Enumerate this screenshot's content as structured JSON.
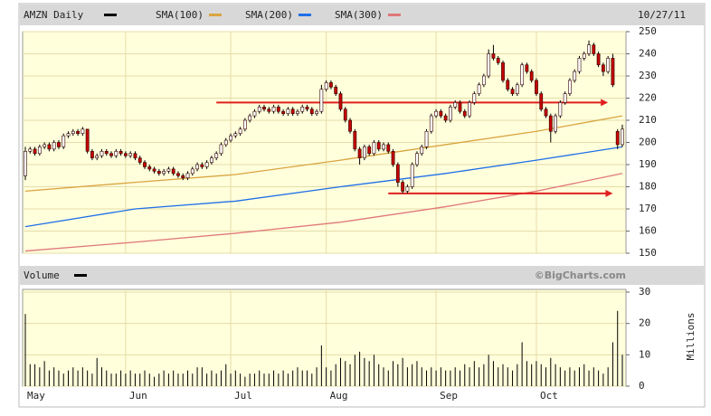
{
  "chart_data": [
    {
      "type": "candlestick",
      "title": "AMZN Daily",
      "color": "#000000",
      "date": "10/27/11",
      "watermark": "©BigCharts.com",
      "up_color": "#ffffff",
      "down_color": "#c40000",
      "ylim": [
        150,
        250
      ],
      "yticks": [
        150,
        160,
        170,
        180,
        190,
        200,
        210,
        220,
        230,
        240,
        250
      ],
      "grid": true,
      "ohlc": [
        [
          185,
          198,
          183,
          196
        ],
        [
          196,
          198,
          195,
          197
        ],
        [
          197,
          198,
          194,
          195
        ],
        [
          195,
          199,
          194,
          198
        ],
        [
          198,
          200,
          197,
          199
        ],
        [
          199,
          200,
          196,
          197
        ],
        [
          197,
          201,
          196,
          200
        ],
        [
          200,
          201,
          197,
          198
        ],
        [
          198,
          204,
          197,
          203
        ],
        [
          203,
          205,
          202,
          204
        ],
        [
          204,
          206,
          203,
          205
        ],
        [
          205,
          206,
          203,
          204
        ],
        [
          204,
          207,
          203,
          206
        ],
        [
          206,
          206,
          195,
          196
        ],
        [
          196,
          197,
          192,
          193
        ],
        [
          193,
          195,
          192,
          194
        ],
        [
          194,
          197,
          193,
          196
        ],
        [
          196,
          197,
          194,
          195
        ],
        [
          195,
          196,
          193,
          194
        ],
        [
          194,
          197,
          193,
          196
        ],
        [
          196,
          197,
          194,
          195
        ],
        [
          195,
          196,
          193,
          194
        ],
        [
          194,
          196,
          193,
          195
        ],
        [
          195,
          196,
          192,
          193
        ],
        [
          193,
          194,
          190,
          191
        ],
        [
          191,
          192,
          188,
          189
        ],
        [
          189,
          190,
          187,
          188
        ],
        [
          188,
          189,
          186,
          187
        ],
        [
          187,
          188,
          185,
          186
        ],
        [
          186,
          188,
          185,
          187
        ],
        [
          187,
          189,
          186,
          188
        ],
        [
          188,
          189,
          185,
          186
        ],
        [
          186,
          187,
          184,
          185
        ],
        [
          185,
          186,
          183,
          184
        ],
        [
          184,
          187,
          183,
          186
        ],
        [
          186,
          189,
          185,
          188
        ],
        [
          188,
          191,
          187,
          190
        ],
        [
          190,
          191,
          188,
          189
        ],
        [
          189,
          192,
          188,
          191
        ],
        [
          191,
          194,
          190,
          193
        ],
        [
          193,
          196,
          192,
          195
        ],
        [
          195,
          200,
          194,
          199
        ],
        [
          199,
          202,
          198,
          201
        ],
        [
          201,
          204,
          200,
          203
        ],
        [
          203,
          205,
          202,
          204
        ],
        [
          204,
          207,
          203,
          206
        ],
        [
          206,
          211,
          205,
          210
        ],
        [
          210,
          213,
          209,
          212
        ],
        [
          212,
          215,
          211,
          214
        ],
        [
          214,
          217,
          213,
          216
        ],
        [
          216,
          217,
          214,
          215
        ],
        [
          215,
          216,
          213,
          214
        ],
        [
          214,
          217,
          213,
          216
        ],
        [
          216,
          217,
          213,
          214
        ],
        [
          214,
          215,
          212,
          213
        ],
        [
          213,
          216,
          212,
          215
        ],
        [
          215,
          216,
          212,
          213
        ],
        [
          213,
          215,
          212,
          214
        ],
        [
          214,
          217,
          213,
          216
        ],
        [
          216,
          217,
          214,
          215
        ],
        [
          215,
          216,
          212,
          213
        ],
        [
          213,
          215,
          212,
          214
        ],
        [
          214,
          226,
          213,
          224
        ],
        [
          224,
          228,
          223,
          227
        ],
        [
          227,
          228,
          224,
          225
        ],
        [
          225,
          226,
          221,
          222
        ],
        [
          222,
          223,
          214,
          215
        ],
        [
          215,
          216,
          209,
          210
        ],
        [
          210,
          211,
          204,
          205
        ],
        [
          205,
          206,
          196,
          197
        ],
        [
          197,
          198,
          190,
          193
        ],
        [
          193,
          199,
          192,
          198
        ],
        [
          198,
          199,
          194,
          195
        ],
        [
          195,
          201,
          194,
          200
        ],
        [
          200,
          201,
          196,
          197
        ],
        [
          197,
          200,
          196,
          199
        ],
        [
          199,
          200,
          195,
          196
        ],
        [
          196,
          197,
          189,
          190
        ],
        [
          190,
          191,
          180,
          182
        ],
        [
          182,
          183,
          177,
          178
        ],
        [
          178,
          181,
          177,
          180
        ],
        [
          180,
          191,
          179,
          190
        ],
        [
          190,
          196,
          189,
          195
        ],
        [
          195,
          199,
          194,
          198
        ],
        [
          198,
          206,
          197,
          205
        ],
        [
          205,
          213,
          204,
          212
        ],
        [
          212,
          215,
          211,
          214
        ],
        [
          214,
          215,
          211,
          212
        ],
        [
          212,
          213,
          209,
          210
        ],
        [
          210,
          217,
          209,
          216
        ],
        [
          216,
          219,
          215,
          218
        ],
        [
          218,
          219,
          213,
          214
        ],
        [
          214,
          215,
          211,
          212
        ],
        [
          212,
          219,
          211,
          218
        ],
        [
          218,
          223,
          217,
          222
        ],
        [
          222,
          227,
          221,
          226
        ],
        [
          226,
          231,
          225,
          230
        ],
        [
          230,
          242,
          229,
          240
        ],
        [
          240,
          244,
          237,
          238
        ],
        [
          238,
          239,
          235,
          236
        ],
        [
          236,
          237,
          227,
          228
        ],
        [
          228,
          229,
          223,
          224
        ],
        [
          224,
          225,
          221,
          222
        ],
        [
          222,
          227,
          221,
          226
        ],
        [
          226,
          236,
          225,
          235
        ],
        [
          235,
          236,
          231,
          232
        ],
        [
          232,
          233,
          227,
          228
        ],
        [
          228,
          229,
          221,
          222
        ],
        [
          222,
          223,
          214,
          215
        ],
        [
          215,
          216,
          211,
          212
        ],
        [
          212,
          213,
          200,
          205
        ],
        [
          205,
          213,
          204,
          212
        ],
        [
          212,
          219,
          211,
          218
        ],
        [
          218,
          223,
          217,
          222
        ],
        [
          222,
          229,
          221,
          228
        ],
        [
          228,
          233,
          227,
          232
        ],
        [
          232,
          239,
          231,
          238
        ],
        [
          238,
          241,
          237,
          240
        ],
        [
          240,
          246,
          239,
          244
        ],
        [
          244,
          245,
          239,
          240
        ],
        [
          240,
          241,
          234,
          235
        ],
        [
          235,
          236,
          230,
          232
        ],
        [
          232,
          239,
          231,
          238
        ],
        [
          238,
          240,
          225,
          226
        ],
        [
          205,
          206,
          197,
          199
        ],
        [
          199,
          208,
          198,
          206
        ]
      ],
      "series": [
        {
          "name": "SMA(100)",
          "color": "#d9a441",
          "x": [
            0,
            23,
            44,
            66,
            88,
            107,
            125
          ],
          "values": [
            178,
            182,
            185.5,
            192,
            199,
            205,
            212
          ]
        },
        {
          "name": "SMA(200)",
          "color": "#1f6fe8",
          "x": [
            0,
            23,
            44,
            66,
            88,
            107,
            125
          ],
          "values": [
            162,
            170,
            173.5,
            180,
            186,
            192,
            198
          ]
        },
        {
          "name": "SMA(300)",
          "color": "#e07878",
          "x": [
            0,
            23,
            44,
            66,
            88,
            107,
            125
          ],
          "values": [
            151,
            155,
            159,
            164,
            171,
            178,
            186
          ]
        }
      ],
      "annotations": [
        {
          "y": 218,
          "x": [
            40,
            122
          ],
          "color": "#e02020"
        },
        {
          "y": 177,
          "x": [
            76,
            123
          ],
          "color": "#e02020"
        }
      ]
    },
    {
      "type": "bar",
      "title": "Volume",
      "ylabel": "Millions",
      "color": "#000000",
      "ylim": [
        0,
        30
      ],
      "yticks": [
        0,
        10,
        20,
        30
      ],
      "grid": true,
      "categories": [
        "May",
        null,
        null,
        null,
        null,
        null,
        null,
        null,
        null,
        null,
        null,
        null,
        null,
        null,
        null,
        null,
        null,
        null,
        null,
        null,
        null,
        "Jun",
        null,
        null,
        null,
        null,
        null,
        null,
        null,
        null,
        null,
        null,
        null,
        null,
        null,
        null,
        null,
        null,
        null,
        null,
        null,
        null,
        null,
        "Jul",
        null,
        null,
        null,
        null,
        null,
        null,
        null,
        null,
        null,
        null,
        null,
        null,
        null,
        null,
        null,
        null,
        null,
        null,
        null,
        "Aug",
        null,
        null,
        null,
        null,
        null,
        null,
        null,
        null,
        null,
        null,
        null,
        null,
        null,
        null,
        null,
        null,
        null,
        null,
        null,
        null,
        null,
        null,
        "Sep",
        null,
        null,
        null,
        null,
        null,
        null,
        null,
        null,
        null,
        null,
        null,
        null,
        null,
        null,
        null,
        null,
        null,
        null,
        null,
        null,
        "Oct",
        null,
        null,
        null,
        null,
        null,
        null,
        null,
        null,
        null,
        null,
        null,
        null,
        null,
        null,
        null,
        null,
        null,
        null
      ],
      "values": [
        23,
        7,
        7,
        6,
        8,
        5,
        6,
        5,
        4,
        5,
        6,
        5,
        6,
        5,
        4,
        9,
        6,
        5,
        4,
        4,
        5,
        4,
        5,
        4,
        4,
        5,
        4,
        3,
        4,
        5,
        4,
        5,
        4,
        4,
        5,
        4,
        6,
        6,
        4,
        5,
        4,
        5,
        7,
        4,
        5,
        4,
        3,
        4,
        4,
        5,
        4,
        4,
        5,
        4,
        5,
        4,
        5,
        6,
        5,
        5,
        4,
        6,
        13,
        6,
        5,
        7,
        9,
        8,
        7,
        10,
        11,
        9,
        8,
        10,
        7,
        6,
        5,
        8,
        7,
        9,
        6,
        7,
        8,
        6,
        5,
        6,
        5,
        6,
        5,
        5,
        6,
        5,
        7,
        6,
        8,
        6,
        7,
        10,
        8,
        6,
        7,
        6,
        5,
        7,
        14,
        8,
        7,
        8,
        7,
        6,
        9,
        7,
        6,
        5,
        6,
        5,
        6,
        7,
        5,
        6,
        5,
        4,
        6,
        14,
        24,
        10
      ]
    }
  ]
}
